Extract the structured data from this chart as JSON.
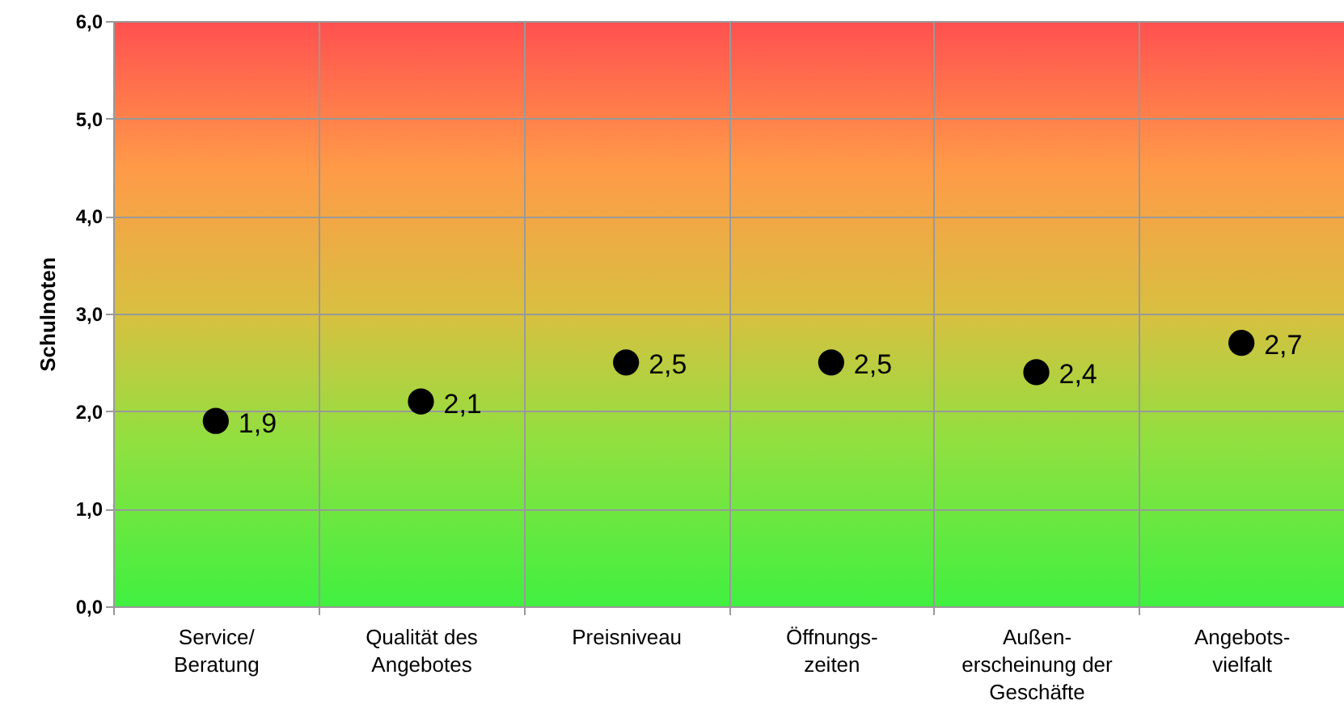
{
  "chart_data": {
    "type": "scatter",
    "ylabel": "Schulnoten",
    "categories": [
      "Service/\nBeratung",
      "Qualität des\nAngebotes",
      "Preisniveau",
      "Öffnungs-\nzeiten",
      "Außen-\nerscheinung der\nGeschäfte",
      "Angebots-\nvielfalt"
    ],
    "series": [
      {
        "color": "#000000",
        "values": [
          1.9,
          2.1,
          2.5,
          2.5,
          2.4,
          2.7
        ],
        "value_labels": [
          "1,9",
          "2,1",
          "2,5",
          "2,5",
          "2,4",
          "2,7"
        ]
      }
    ],
    "ylim": [
      0,
      6
    ],
    "yticks": [
      {
        "value": 0,
        "label": "0,0"
      },
      {
        "value": 1,
        "label": "1,0"
      },
      {
        "value": 2,
        "label": "2,0"
      },
      {
        "value": 3,
        "label": "3,0"
      },
      {
        "value": 4,
        "label": "4,0"
      },
      {
        "value": 5,
        "label": "5,0"
      },
      {
        "value": 6,
        "label": "6,0"
      }
    ],
    "grid": true,
    "marker": "circle"
  }
}
